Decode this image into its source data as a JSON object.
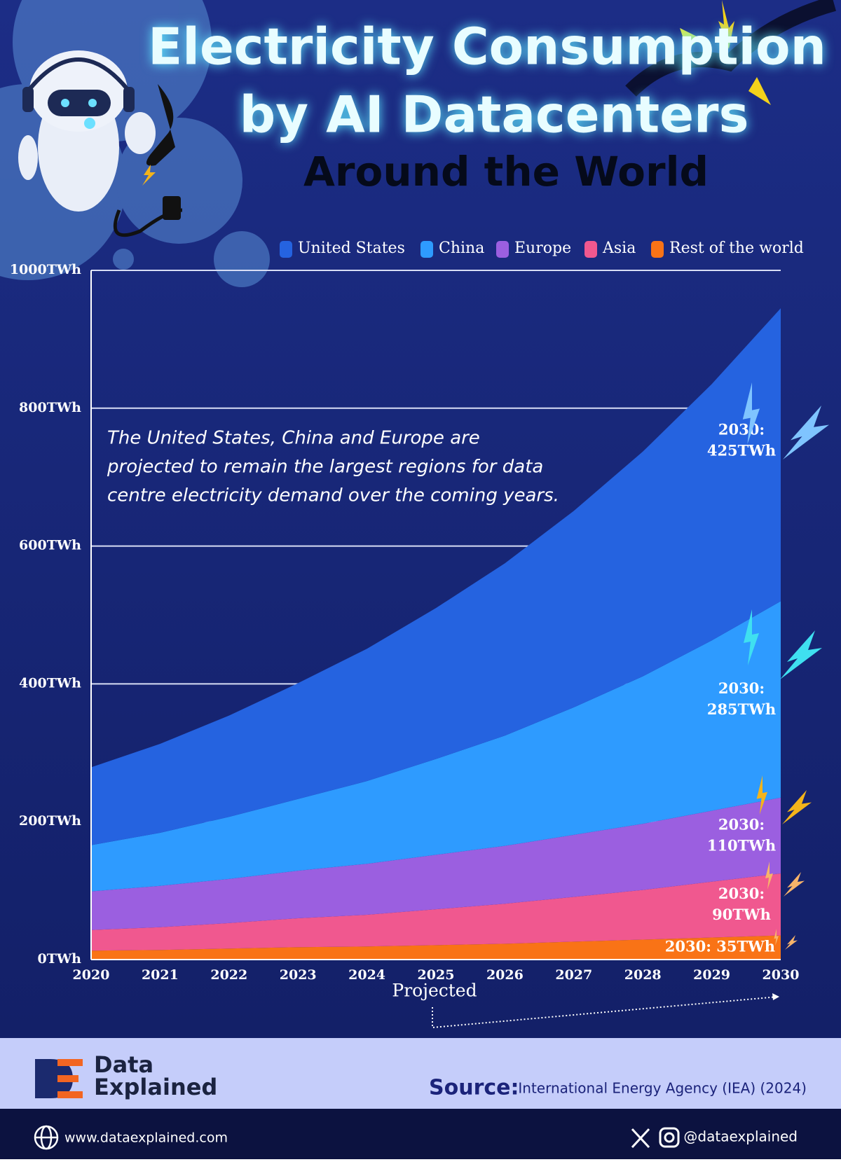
{
  "header": {
    "title_line1": "Electricity Consumption",
    "title_line2": "by AI Datacenters",
    "subtitle": "Around the World"
  },
  "chart_data": {
    "type": "stacked_area",
    "categories": [
      "2020",
      "2021",
      "2022",
      "2023",
      "2024",
      "2025",
      "2026",
      "2027",
      "2028",
      "2029",
      "2030"
    ],
    "series": [
      {
        "name": "Rest of the world",
        "color": "#f97316",
        "values": [
          13,
          14,
          16,
          18,
          19,
          21,
          23,
          26,
          29,
          32,
          35
        ]
      },
      {
        "name": "Asia",
        "color": "#f0588f",
        "values": [
          30,
          33,
          37,
          42,
          46,
          52,
          58,
          65,
          72,
          81,
          90
        ]
      },
      {
        "name": "Europe",
        "color": "#9b5fe0",
        "values": [
          56,
          60,
          64,
          69,
          74,
          79,
          84,
          90,
          96,
          103,
          110
        ]
      },
      {
        "name": "China",
        "color": "#2e9bff",
        "values": [
          67,
          77,
          90,
          104,
          120,
          139,
          160,
          185,
          214,
          247,
          285
        ]
      },
      {
        "name": "United States",
        "color": "#2563e0",
        "values": [
          113,
          129,
          147,
          168,
          192,
          219,
          250,
          285,
          326,
          372,
          425
        ]
      }
    ],
    "legend_order": [
      4,
      3,
      2,
      1,
      0
    ],
    "annotations": [
      [
        "2030: 35TWh"
      ],
      [
        "2030:",
        "90TWh"
      ],
      [
        "2030:",
        "110TWh"
      ],
      [
        "2030:",
        "285TWh"
      ],
      [
        "2030:",
        "425TWh"
      ]
    ],
    "note": [
      "The United States, China and Europe are",
      "projected to remain the largest regions for data",
      "centre electricity demand over the coming years."
    ],
    "projected_label": "Projected",
    "ylim": [
      0,
      1000
    ],
    "yticks": [
      {
        "value": 0,
        "label": "0TWh"
      },
      {
        "value": 200,
        "label": "200TWh"
      },
      {
        "value": 400,
        "label": "400TWh"
      },
      {
        "value": 600,
        "label": "600TWh"
      },
      {
        "value": 800,
        "label": "800TWh"
      },
      {
        "value": 1000,
        "label": "1000TWh"
      }
    ],
    "grid": true
  },
  "footer": {
    "brand_line1": "Data",
    "brand_line2": "Explained",
    "source_label": "Source:",
    "source_text": "International Energy Agency (IEA) (2024)",
    "website": "www.dataexplained.com",
    "handle": "@dataexplained"
  }
}
